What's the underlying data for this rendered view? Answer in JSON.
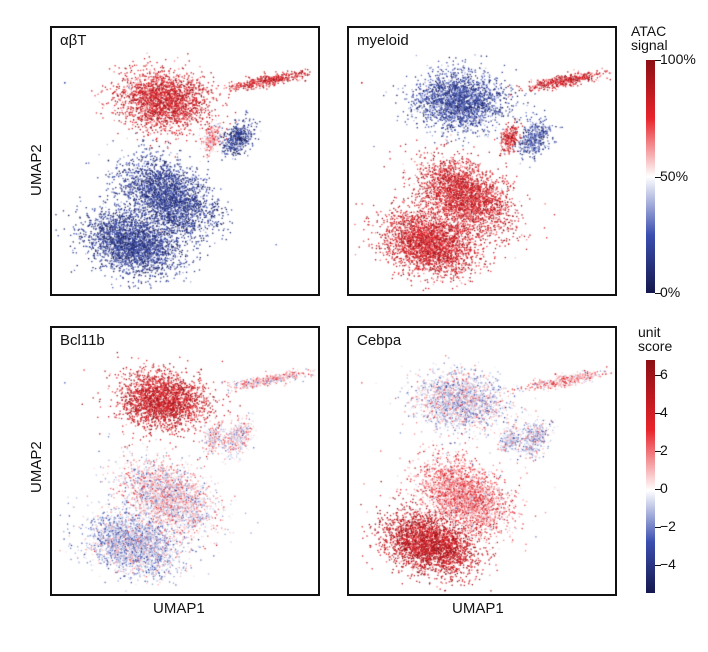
{
  "chart_data": [
    {
      "type": "scatter",
      "title": "αβT",
      "xlabel": "",
      "ylabel": "UMAP2",
      "colorscale": "ATAC signal",
      "pattern": "abT"
    },
    {
      "type": "scatter",
      "title": "myeloid",
      "xlabel": "",
      "ylabel": "",
      "colorscale": "ATAC signal",
      "pattern": "myeloid"
    },
    {
      "type": "scatter",
      "title": "Bcl11b",
      "xlabel": "UMAP1",
      "ylabel": "UMAP2",
      "colorscale": "unit score",
      "pattern": "bcl11b"
    },
    {
      "type": "scatter",
      "title": "Cebpa",
      "xlabel": "UMAP1",
      "ylabel": "",
      "colorscale": "unit score",
      "pattern": "cebpa"
    }
  ],
  "colorbars": {
    "atac": {
      "title_line1": "ATAC",
      "title_line2": "signal",
      "ticks": [
        "100%",
        "50%",
        "0%"
      ],
      "tick_values": [
        1.0,
        0.5,
        0.0
      ],
      "range": [
        0,
        1
      ]
    },
    "unit": {
      "title_line1": "unit",
      "title_line2": "score",
      "ticks": [
        "6",
        "4",
        "2",
        "0",
        "−2",
        "−4"
      ],
      "tick_values": [
        6,
        4,
        2,
        0,
        -2,
        -4
      ],
      "range": [
        -5.5,
        6.8
      ]
    }
  },
  "colors": {
    "high": "#8b0f14",
    "red": "#e8242b",
    "mid": "#ffffff",
    "blue": "#3b4fb0",
    "low": "#15184d"
  },
  "labels": {
    "ylabel_top": "UMAP2",
    "ylabel_bottom": "UMAP2",
    "xlabel_left": "UMAP1",
    "xlabel_right": "UMAP1"
  }
}
